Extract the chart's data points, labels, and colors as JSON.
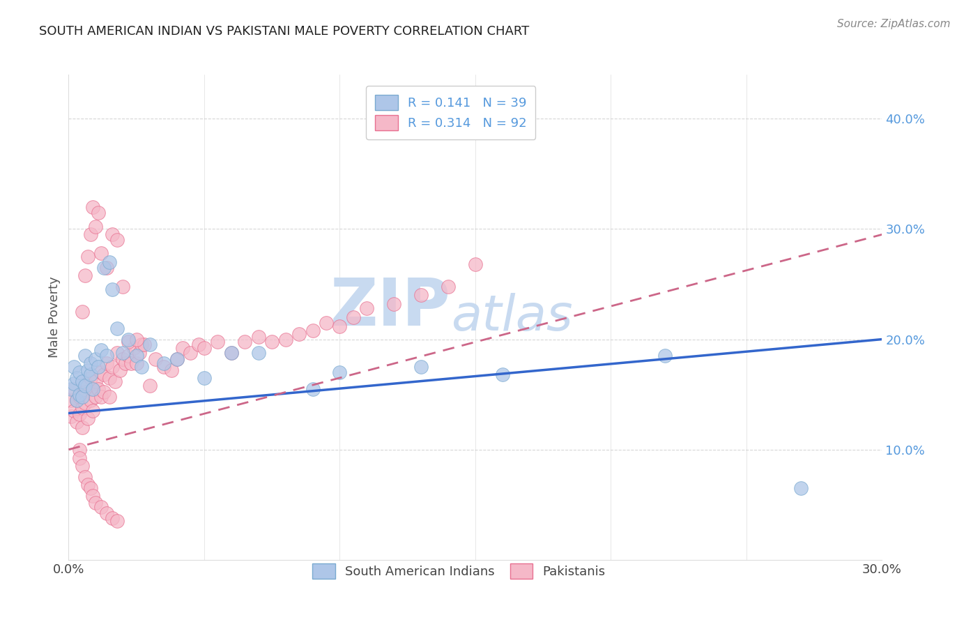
{
  "title": "SOUTH AMERICAN INDIAN VS PAKISTANI MALE POVERTY CORRELATION CHART",
  "source": "Source: ZipAtlas.com",
  "ylabel": "Male Poverty",
  "xlim": [
    0.0,
    0.3
  ],
  "ylim": [
    0.0,
    0.44
  ],
  "yticks": [
    0.1,
    0.2,
    0.3,
    0.4
  ],
  "ytick_labels": [
    "10.0%",
    "20.0%",
    "30.0%",
    "40.0%"
  ],
  "xticks": [
    0.0,
    0.3
  ],
  "xtick_labels": [
    "0.0%",
    "30.0%"
  ],
  "blue_color": "#aec6e8",
  "blue_edge": "#7aaad0",
  "pink_color": "#f5b8c8",
  "pink_edge": "#e87090",
  "blue_line_color": "#3366cc",
  "pink_line_color": "#cc6688",
  "tick_label_color": "#5599dd",
  "watermark_color": "#c8daf0",
  "background": "#ffffff",
  "grid_color": "#cccccc",
  "blue_line_start_y": 0.133,
  "blue_line_end_y": 0.2,
  "pink_line_start_y": 0.1,
  "pink_line_end_y": 0.295,
  "sa_x": [
    0.001,
    0.002,
    0.002,
    0.003,
    0.003,
    0.004,
    0.004,
    0.005,
    0.005,
    0.006,
    0.006,
    0.007,
    0.008,
    0.008,
    0.009,
    0.01,
    0.011,
    0.012,
    0.013,
    0.014,
    0.015,
    0.016,
    0.018,
    0.02,
    0.022,
    0.025,
    0.027,
    0.03,
    0.035,
    0.04,
    0.05,
    0.06,
    0.07,
    0.09,
    0.1,
    0.13,
    0.16,
    0.22,
    0.27
  ],
  "sa_y": [
    0.155,
    0.16,
    0.175,
    0.145,
    0.165,
    0.15,
    0.17,
    0.148,
    0.162,
    0.158,
    0.185,
    0.172,
    0.168,
    0.178,
    0.155,
    0.182,
    0.175,
    0.19,
    0.265,
    0.185,
    0.27,
    0.245,
    0.21,
    0.188,
    0.2,
    0.185,
    0.175,
    0.195,
    0.178,
    0.182,
    0.165,
    0.188,
    0.188,
    0.155,
    0.17,
    0.175,
    0.168,
    0.185,
    0.065
  ],
  "pak_x": [
    0.001,
    0.001,
    0.002,
    0.002,
    0.003,
    0.003,
    0.004,
    0.004,
    0.005,
    0.005,
    0.006,
    0.006,
    0.007,
    0.007,
    0.008,
    0.008,
    0.009,
    0.009,
    0.01,
    0.01,
    0.011,
    0.012,
    0.012,
    0.013,
    0.013,
    0.014,
    0.015,
    0.015,
    0.016,
    0.017,
    0.018,
    0.019,
    0.02,
    0.021,
    0.022,
    0.023,
    0.024,
    0.025,
    0.026,
    0.027,
    0.028,
    0.03,
    0.032,
    0.035,
    0.038,
    0.04,
    0.042,
    0.045,
    0.048,
    0.05,
    0.055,
    0.06,
    0.065,
    0.07,
    0.075,
    0.08,
    0.085,
    0.09,
    0.095,
    0.1,
    0.105,
    0.11,
    0.12,
    0.13,
    0.14,
    0.15,
    0.005,
    0.006,
    0.007,
    0.008,
    0.009,
    0.01,
    0.011,
    0.012,
    0.014,
    0.016,
    0.018,
    0.02,
    0.022,
    0.025,
    0.004,
    0.004,
    0.005,
    0.006,
    0.007,
    0.008,
    0.009,
    0.01,
    0.012,
    0.014,
    0.016,
    0.018
  ],
  "pak_y": [
    0.145,
    0.13,
    0.155,
    0.135,
    0.145,
    0.125,
    0.148,
    0.132,
    0.138,
    0.12,
    0.152,
    0.142,
    0.158,
    0.128,
    0.165,
    0.145,
    0.155,
    0.135,
    0.162,
    0.148,
    0.155,
    0.17,
    0.148,
    0.168,
    0.152,
    0.178,
    0.165,
    0.148,
    0.175,
    0.162,
    0.188,
    0.172,
    0.182,
    0.178,
    0.185,
    0.178,
    0.192,
    0.178,
    0.188,
    0.195,
    0.195,
    0.158,
    0.182,
    0.175,
    0.172,
    0.182,
    0.192,
    0.188,
    0.195,
    0.192,
    0.198,
    0.188,
    0.198,
    0.202,
    0.198,
    0.2,
    0.205,
    0.208,
    0.215,
    0.212,
    0.22,
    0.228,
    0.232,
    0.24,
    0.248,
    0.268,
    0.225,
    0.258,
    0.275,
    0.295,
    0.32,
    0.302,
    0.315,
    0.278,
    0.265,
    0.295,
    0.29,
    0.248,
    0.198,
    0.2,
    0.1,
    0.092,
    0.085,
    0.075,
    0.068,
    0.065,
    0.058,
    0.052,
    0.048,
    0.042,
    0.038,
    0.035
  ]
}
